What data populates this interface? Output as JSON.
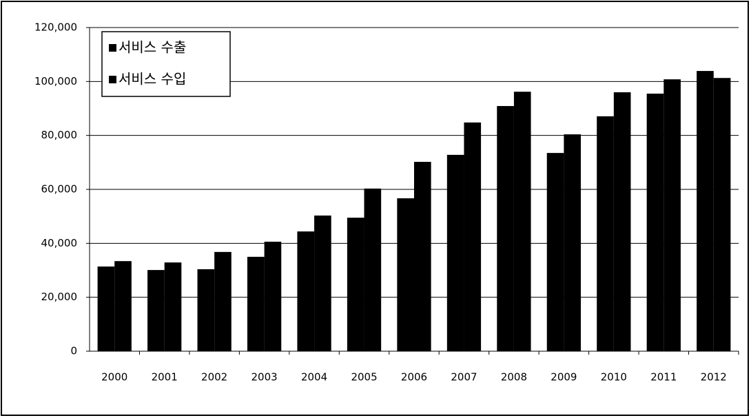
{
  "chart_data": {
    "type": "bar",
    "categories": [
      "2000",
      "2001",
      "2002",
      "2003",
      "2004",
      "2005",
      "2006",
      "2007",
      "2008",
      "2009",
      "2010",
      "2011",
      "2012"
    ],
    "series": [
      {
        "name": "서비스 수출",
        "color": "#000000",
        "values": [
          31400,
          30100,
          30400,
          35000,
          44400,
          49500,
          56700,
          72800,
          90900,
          73500,
          87100,
          95500,
          103900
        ]
      },
      {
        "name": "서비스 수입",
        "color": "#000000",
        "values": [
          33400,
          32900,
          36800,
          40600,
          50300,
          60300,
          70200,
          84800,
          96200,
          80400,
          96000,
          100800,
          101300
        ]
      }
    ],
    "ylim": [
      0,
      120000
    ],
    "yticks": [
      0,
      {
        "value": 20000,
        "label": "20,000"
      },
      {
        "value": 40000,
        "label": "40,000"
      },
      {
        "value": 60000,
        "label": "60,000"
      },
      {
        "value": 80000,
        "label": "80,000"
      },
      {
        "value": 100000,
        "label": "100,000"
      },
      {
        "value": 120000,
        "label": "120,000"
      }
    ],
    "grid": true,
    "legend": "top-left"
  }
}
